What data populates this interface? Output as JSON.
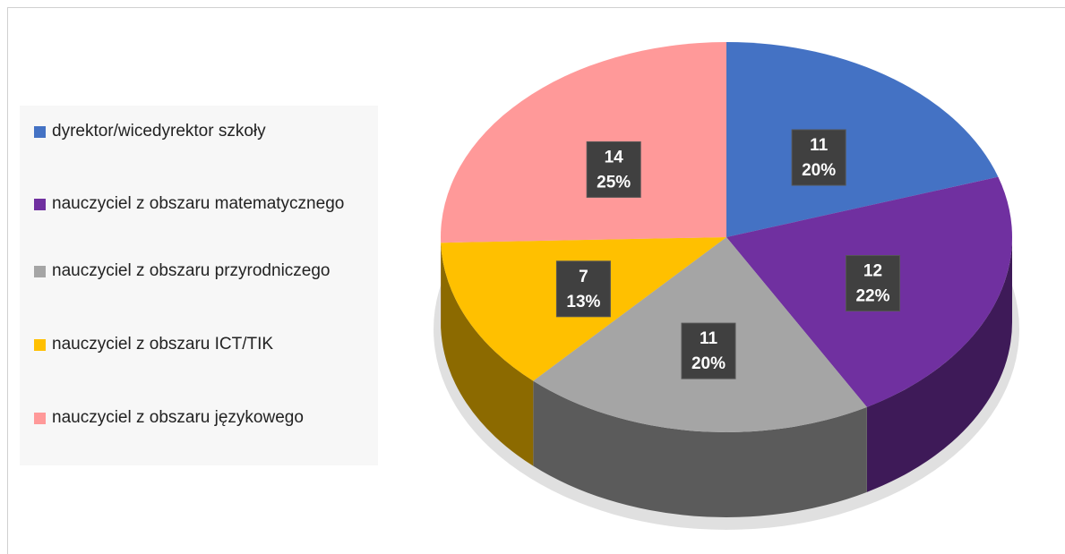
{
  "chart_data": {
    "type": "pie",
    "categories": [
      "dyrektor/wicedyrektor szkoły",
      "nauczyciel z obszaru matematycznego",
      "nauczyciel z obszaru przyrodniczego",
      "nauczyciel z obszaru ICT/TIK",
      "nauczyciel z obszaru językowego"
    ],
    "values": [
      11,
      12,
      11,
      7,
      14
    ],
    "percentages": [
      20,
      22,
      20,
      13,
      25
    ],
    "percentage_labels": [
      "20%",
      "22%",
      "20%",
      "13%",
      "25%"
    ],
    "colors": [
      "#4472c4",
      "#7030a0",
      "#a5a5a5",
      "#ffc000",
      "#ff9999"
    ],
    "legend": "left"
  }
}
